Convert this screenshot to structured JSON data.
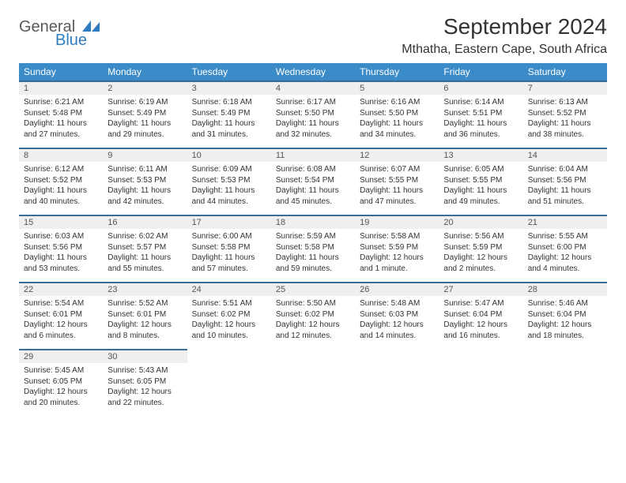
{
  "logo": {
    "line1": "General",
    "line2": "Blue"
  },
  "title": "September 2024",
  "location": "Mthatha, Eastern Cape, South Africa",
  "colors": {
    "header_bg": "#3b8bc9",
    "header_text": "#ffffff",
    "row_border": "#3b6d99",
    "daynum_bg": "#efefef",
    "logo_blue": "#2f7bbf",
    "logo_gray": "#5a5a5a"
  },
  "weekdays": [
    "Sunday",
    "Monday",
    "Tuesday",
    "Wednesday",
    "Thursday",
    "Friday",
    "Saturday"
  ],
  "days": [
    {
      "n": "1",
      "sr": "6:21 AM",
      "ss": "5:48 PM",
      "dl": "11 hours and 27 minutes."
    },
    {
      "n": "2",
      "sr": "6:19 AM",
      "ss": "5:49 PM",
      "dl": "11 hours and 29 minutes."
    },
    {
      "n": "3",
      "sr": "6:18 AM",
      "ss": "5:49 PM",
      "dl": "11 hours and 31 minutes."
    },
    {
      "n": "4",
      "sr": "6:17 AM",
      "ss": "5:50 PM",
      "dl": "11 hours and 32 minutes."
    },
    {
      "n": "5",
      "sr": "6:16 AM",
      "ss": "5:50 PM",
      "dl": "11 hours and 34 minutes."
    },
    {
      "n": "6",
      "sr": "6:14 AM",
      "ss": "5:51 PM",
      "dl": "11 hours and 36 minutes."
    },
    {
      "n": "7",
      "sr": "6:13 AM",
      "ss": "5:52 PM",
      "dl": "11 hours and 38 minutes."
    },
    {
      "n": "8",
      "sr": "6:12 AM",
      "ss": "5:52 PM",
      "dl": "11 hours and 40 minutes."
    },
    {
      "n": "9",
      "sr": "6:11 AM",
      "ss": "5:53 PM",
      "dl": "11 hours and 42 minutes."
    },
    {
      "n": "10",
      "sr": "6:09 AM",
      "ss": "5:53 PM",
      "dl": "11 hours and 44 minutes."
    },
    {
      "n": "11",
      "sr": "6:08 AM",
      "ss": "5:54 PM",
      "dl": "11 hours and 45 minutes."
    },
    {
      "n": "12",
      "sr": "6:07 AM",
      "ss": "5:55 PM",
      "dl": "11 hours and 47 minutes."
    },
    {
      "n": "13",
      "sr": "6:05 AM",
      "ss": "5:55 PM",
      "dl": "11 hours and 49 minutes."
    },
    {
      "n": "14",
      "sr": "6:04 AM",
      "ss": "5:56 PM",
      "dl": "11 hours and 51 minutes."
    },
    {
      "n": "15",
      "sr": "6:03 AM",
      "ss": "5:56 PM",
      "dl": "11 hours and 53 minutes."
    },
    {
      "n": "16",
      "sr": "6:02 AM",
      "ss": "5:57 PM",
      "dl": "11 hours and 55 minutes."
    },
    {
      "n": "17",
      "sr": "6:00 AM",
      "ss": "5:58 PM",
      "dl": "11 hours and 57 minutes."
    },
    {
      "n": "18",
      "sr": "5:59 AM",
      "ss": "5:58 PM",
      "dl": "11 hours and 59 minutes."
    },
    {
      "n": "19",
      "sr": "5:58 AM",
      "ss": "5:59 PM",
      "dl": "12 hours and 1 minute."
    },
    {
      "n": "20",
      "sr": "5:56 AM",
      "ss": "5:59 PM",
      "dl": "12 hours and 2 minutes."
    },
    {
      "n": "21",
      "sr": "5:55 AM",
      "ss": "6:00 PM",
      "dl": "12 hours and 4 minutes."
    },
    {
      "n": "22",
      "sr": "5:54 AM",
      "ss": "6:01 PM",
      "dl": "12 hours and 6 minutes."
    },
    {
      "n": "23",
      "sr": "5:52 AM",
      "ss": "6:01 PM",
      "dl": "12 hours and 8 minutes."
    },
    {
      "n": "24",
      "sr": "5:51 AM",
      "ss": "6:02 PM",
      "dl": "12 hours and 10 minutes."
    },
    {
      "n": "25",
      "sr": "5:50 AM",
      "ss": "6:02 PM",
      "dl": "12 hours and 12 minutes."
    },
    {
      "n": "26",
      "sr": "5:48 AM",
      "ss": "6:03 PM",
      "dl": "12 hours and 14 minutes."
    },
    {
      "n": "27",
      "sr": "5:47 AM",
      "ss": "6:04 PM",
      "dl": "12 hours and 16 minutes."
    },
    {
      "n": "28",
      "sr": "5:46 AM",
      "ss": "6:04 PM",
      "dl": "12 hours and 18 minutes."
    },
    {
      "n": "29",
      "sr": "5:45 AM",
      "ss": "6:05 PM",
      "dl": "12 hours and 20 minutes."
    },
    {
      "n": "30",
      "sr": "5:43 AM",
      "ss": "6:05 PM",
      "dl": "12 hours and 22 minutes."
    }
  ],
  "labels": {
    "sunrise": "Sunrise:",
    "sunset": "Sunset:",
    "daylight": "Daylight:"
  }
}
